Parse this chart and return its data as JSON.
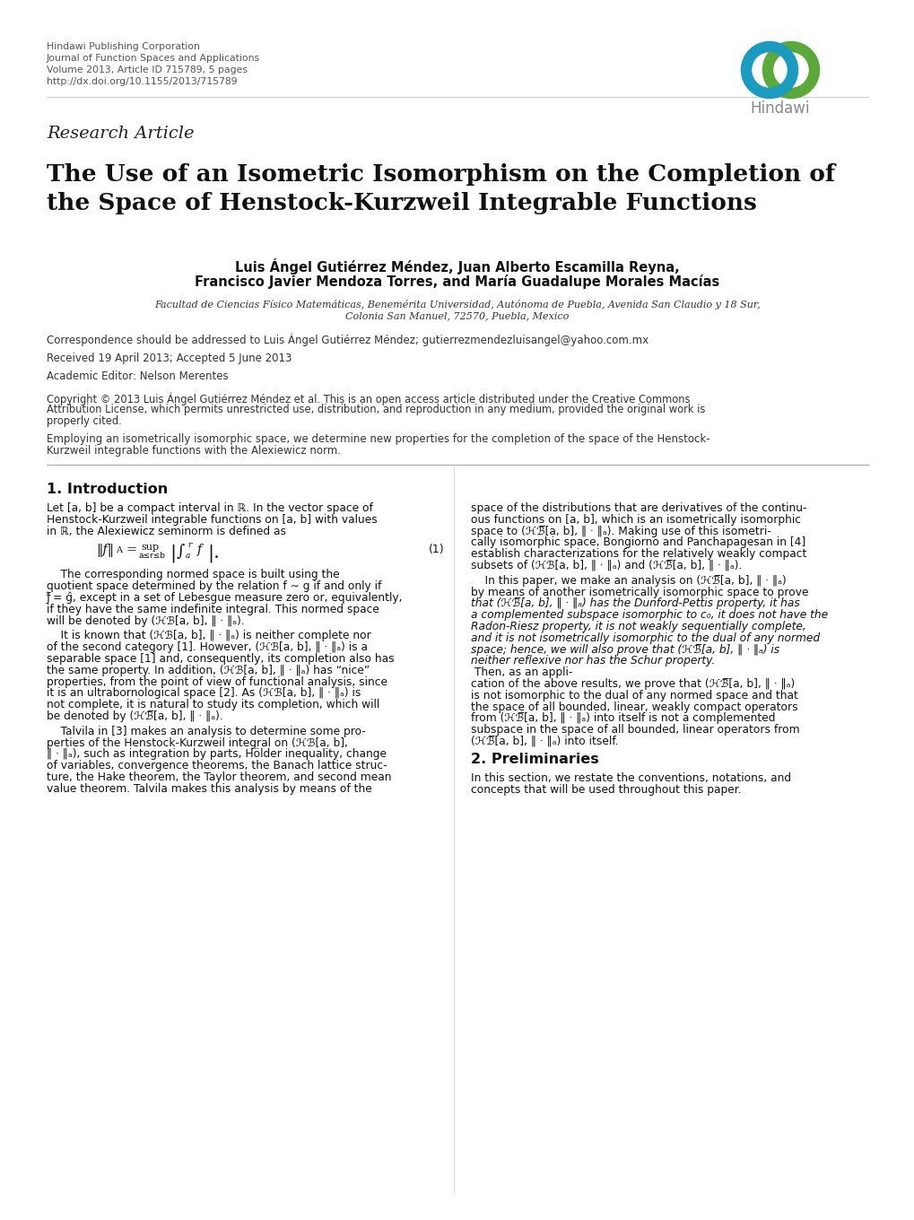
{
  "background_color": "#ffffff",
  "header_lines": [
    "Hindawi Publishing Corporation",
    "Journal of Function Spaces and Applications",
    "Volume 2013, Article ID 715789, 5 pages",
    "http://dx.doi.org/10.1155/2013/715789"
  ],
  "hindawi_text": "Hindawi",
  "research_article_text": "Research Article",
  "title_line1": "The Use of an Isometric Isomorphism on the Completion of",
  "title_line2": "the Space of Henstock-Kurzweil Integrable Functions",
  "authors_line1": "Luis Ángel Gutiérrez Méndez, Juan Alberto Escamilla Reyna,",
  "authors_line2": "Francisco Javier Mendoza Torres, and María Guadalupe Morales Macías",
  "affiliation_line1": "Facultad de Ciencias Físico Matemáticas, Benemérita Universidad, Autónoma de Puebla, Avenida San Claudio y 18 Sur,",
  "affiliation_line2": "Colonia San Manuel, 72570, Puebla, Mexico",
  "correspondence": "Correspondence should be addressed to Luis Ángel Gutiérrez Méndez; gutierrezmendezluisangel@yahoo.com.mx",
  "received": "Received 19 April 2013; Accepted 5 June 2013",
  "academic_editor": "Academic Editor: Nelson Merentes",
  "section1_title": "1. Introduction",
  "section2_title": "2. Preliminaries"
}
